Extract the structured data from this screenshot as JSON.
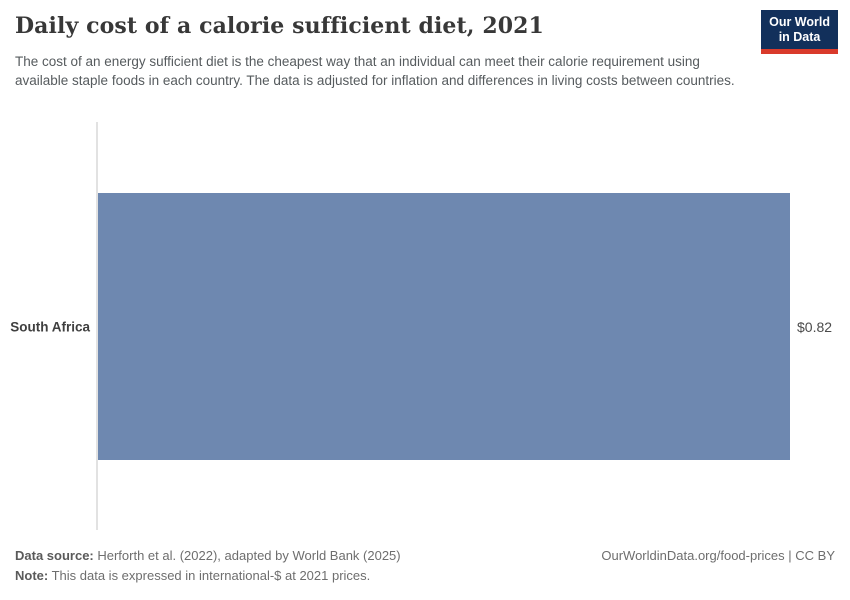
{
  "header": {
    "title": "Daily cost of a calorie sufficient diet, 2021",
    "subtitle": "The cost of an energy sufficient diet is the cheapest way that an individual can meet their calorie requirement using available staple foods in each country. The data is adjusted for inflation and differences in living costs between countries.",
    "logo": {
      "line1": "Our World",
      "line2": "in Data",
      "bg_color": "#12305b",
      "accent_color": "#d93a2b"
    }
  },
  "chart_data": {
    "type": "bar",
    "orientation": "horizontal",
    "title": "Daily cost of a calorie sufficient diet, 2021",
    "categories": [
      "South Africa"
    ],
    "values": [
      0.82
    ],
    "value_labels": [
      "$0.82"
    ],
    "xlim": [
      0,
      0.82
    ],
    "bar_color": "#6e88b0",
    "grid": false,
    "legend": "none",
    "axis_line_color": "#e2e2e2"
  },
  "footer": {
    "datasource_label": "Data source:",
    "datasource_text": " Herforth et al. (2022), adapted by World Bank (2025)",
    "note_label": "Note:",
    "note_text": " This data is expressed in international-$ at 2021 prices.",
    "rights": "OurWorldinData.org/food-prices | CC BY"
  }
}
